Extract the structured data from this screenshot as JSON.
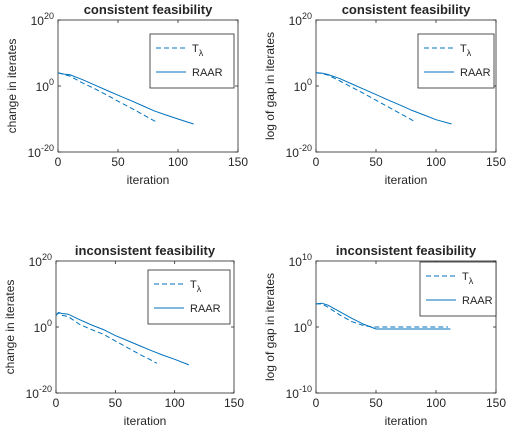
{
  "style": {
    "line_color": "#0072bd",
    "axis_color": "#262626",
    "background": "#ffffff"
  },
  "chart_data": [
    {
      "type": "line",
      "title": "consistent feasibility",
      "xlabel": "iteration",
      "ylabel": "change in iterates",
      "xlim": [
        0,
        150
      ],
      "yscale": "log",
      "ylim_exp": [
        -20,
        20
      ],
      "xticks": [
        "0",
        "50",
        "100",
        "150"
      ],
      "yticks": [
        {
          "base": "10",
          "exp": "20",
          "value_exp": 20
        },
        {
          "base": "10",
          "exp": "0",
          "value_exp": 0
        },
        {
          "base": "10",
          "exp": "-20",
          "value_exp": -20
        }
      ],
      "legend_position": "top-right",
      "series": [
        {
          "name": "T",
          "name_sub": "λ",
          "dash": "dashed",
          "x": [
            0,
            5,
            10,
            20,
            30,
            40,
            50,
            60,
            70,
            80,
            83
          ],
          "log10_y": [
            4.0,
            3.5,
            3.0,
            1.0,
            -0.7,
            -2.6,
            -4.6,
            -6.5,
            -8.5,
            -10.5,
            -11
          ]
        },
        {
          "name": "RAAR",
          "dash": "solid",
          "x": [
            0,
            5,
            10,
            20,
            30,
            40,
            50,
            60,
            70,
            80,
            90,
            100,
            113
          ],
          "log10_y": [
            4.0,
            3.6,
            3.4,
            2.0,
            0.4,
            -1.2,
            -2.8,
            -4.3,
            -5.9,
            -7.5,
            -8.8,
            -10.0,
            -11.5
          ]
        }
      ]
    },
    {
      "type": "line",
      "title": "consistent feasibility",
      "xlabel": "iteration",
      "ylabel": "log of gap in iterates",
      "xlim": [
        0,
        150
      ],
      "yscale": "log",
      "ylim_exp": [
        -20,
        20
      ],
      "xticks": [
        "0",
        "50",
        "100",
        "150"
      ],
      "yticks": [
        {
          "base": "10",
          "exp": "20",
          "value_exp": 20
        },
        {
          "base": "10",
          "exp": "0",
          "value_exp": 0
        },
        {
          "base": "10",
          "exp": "-20",
          "value_exp": -20
        }
      ],
      "legend_position": "top-right",
      "series": [
        {
          "name": "T",
          "name_sub": "λ",
          "dash": "dashed",
          "x": [
            0,
            5,
            10,
            20,
            30,
            40,
            50,
            60,
            70,
            80,
            83
          ],
          "log10_y": [
            4.0,
            3.8,
            3.3,
            1.5,
            -0.4,
            -2.3,
            -4.3,
            -6.3,
            -8.3,
            -10.3,
            -11
          ]
        },
        {
          "name": "RAAR",
          "dash": "solid",
          "x": [
            0,
            5,
            10,
            20,
            30,
            40,
            50,
            60,
            70,
            80,
            90,
            100,
            113
          ],
          "log10_y": [
            4.0,
            3.9,
            3.5,
            2.2,
            0.6,
            -1.0,
            -2.6,
            -4.2,
            -5.8,
            -7.4,
            -8.8,
            -10.2,
            -11.5
          ]
        }
      ]
    },
    {
      "type": "line",
      "title": "inconsistent feasibility",
      "xlabel": "iteration",
      "ylabel": "change in iterates",
      "xlim": [
        0,
        150
      ],
      "yscale": "log",
      "ylim_exp": [
        -20,
        20
      ],
      "xticks": [
        "0",
        "50",
        "100",
        "150"
      ],
      "yticks": [
        {
          "base": "10",
          "exp": "20",
          "value_exp": 20
        },
        {
          "base": "10",
          "exp": "0",
          "value_exp": 0
        },
        {
          "base": "10",
          "exp": "-20",
          "value_exp": -20
        }
      ],
      "legend_position": "top-right",
      "series": [
        {
          "name": "T",
          "name_sub": "λ",
          "dash": "dashed",
          "x": [
            0,
            2,
            5,
            10,
            20,
            30,
            40,
            50,
            60,
            70,
            80,
            85
          ],
          "log10_y": [
            3.5,
            4.3,
            3.5,
            3.2,
            0.8,
            -0.8,
            -2.2,
            -4.2,
            -6.2,
            -8.2,
            -10.0,
            -11
          ]
        },
        {
          "name": "RAAR",
          "dash": "solid",
          "x": [
            0,
            2,
            5,
            10,
            20,
            30,
            40,
            50,
            60,
            70,
            80,
            90,
            100,
            112
          ],
          "log10_y": [
            3.5,
            4.4,
            4.1,
            3.9,
            2.2,
            0.6,
            -0.8,
            -2.6,
            -4.1,
            -5.6,
            -7.1,
            -8.5,
            -9.8,
            -11.5
          ]
        }
      ]
    },
    {
      "type": "line",
      "title": "inconsistent feasibility",
      "xlabel": "iteration",
      "ylabel": "log of gap in iterates",
      "xlim": [
        0,
        150
      ],
      "yscale": "log",
      "ylim_exp": [
        -10,
        10
      ],
      "xticks": [
        "0",
        "50",
        "100",
        "150"
      ],
      "yticks": [
        {
          "base": "10",
          "exp": "10",
          "value_exp": 10
        },
        {
          "base": "10",
          "exp": "0",
          "value_exp": 0
        },
        {
          "base": "10",
          "exp": "-10",
          "value_exp": -10
        }
      ],
      "legend_position": "top-right",
      "series": [
        {
          "name": "T",
          "name_sub": "λ",
          "dash": "dashed",
          "x": [
            0,
            5,
            10,
            20,
            30,
            40,
            48,
            55,
            70,
            90,
            110
          ],
          "log10_y": [
            3.5,
            3.5,
            3.0,
            1.8,
            0.8,
            0.2,
            0.0,
            0.0,
            0.0,
            0.0,
            0.0
          ]
        },
        {
          "name": "RAAR",
          "dash": "solid",
          "x": [
            0,
            5,
            10,
            20,
            30,
            40,
            50,
            53,
            70,
            90,
            112
          ],
          "log10_y": [
            3.5,
            3.6,
            3.3,
            2.3,
            1.3,
            0.4,
            -0.3,
            -0.3,
            -0.3,
            -0.3,
            -0.3
          ]
        }
      ]
    }
  ]
}
